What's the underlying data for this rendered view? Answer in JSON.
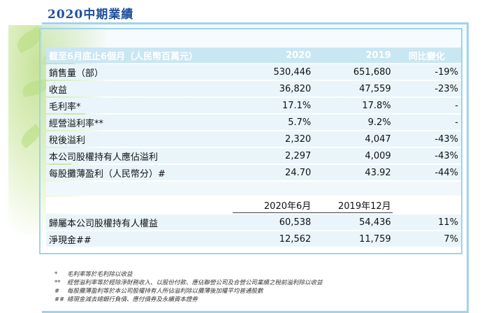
{
  "title": "2020中期業績",
  "table": {
    "header": [
      "截至6月底止6個月（人民幣百萬元）",
      "2020",
      "2019",
      "同比變化"
    ],
    "rows": [
      {
        "label": "銷售量（部）",
        "v2020": "530,446",
        "v2019": "651,680",
        "change": "-19%"
      },
      {
        "label": "收益",
        "v2020": "36,820",
        "v2019": "47,559",
        "change": "-23%"
      },
      {
        "label": "毛利率*",
        "v2020": "17.1%",
        "v2019": "17.8%",
        "change": "-"
      },
      {
        "label": "經營溢利率**",
        "v2020": "5.7%",
        "v2019": "9.2%",
        "change": "-"
      },
      {
        "label": "稅後溢利",
        "v2020": "2,320",
        "v2019": "4,047",
        "change": "-43%"
      },
      {
        "label": "本公司股權持有人應佔溢利",
        "v2020": "2,297",
        "v2019": "4,009",
        "change": "-43%"
      },
      {
        "label": "每股攤薄盈利（人民幣分）#",
        "v2020": "24.70",
        "v2019": "43.92",
        "change": "-44%"
      }
    ],
    "date_headers": [
      "2020年6月",
      "2019年12月"
    ],
    "rows2": [
      {
        "label": "歸屬本公司股權持有人權益",
        "v2020": "60,538",
        "v2019": "54,436",
        "change": "11%"
      },
      {
        "label": "淨現金##",
        "v2020": "12,562",
        "v2019": "11,759",
        "change": "7%"
      }
    ]
  },
  "notes": [
    {
      "mark": "*",
      "text": "毛利率等於毛利除以收益"
    },
    {
      "mark": "**",
      "text": "經營溢利率等於經除淨財務收入、以股份付款、應佔聯營公司及合營公司業績之稅前溢利除以收益"
    },
    {
      "mark": "#",
      "text": "每股攤薄盈利等於本公司股權持有人所佔溢利除以攤薄後加權平均普通股數"
    },
    {
      "mark": "##",
      "text": "總現金減去總銀行負債、應付債券及永續資本證券"
    }
  ],
  "colors": {
    "title": "#1f4e9c",
    "header_bg": "#c9e6f3",
    "row_bg": "#e9f5fb",
    "frame": "#9fd4ea"
  }
}
